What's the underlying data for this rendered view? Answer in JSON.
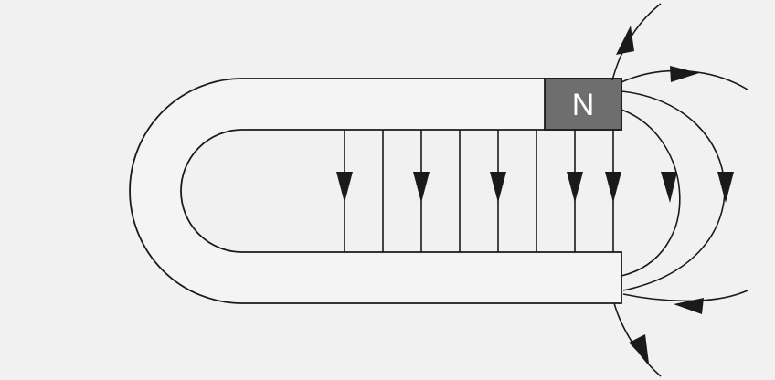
{
  "diagram": {
    "north_pole_label": "N",
    "colors": {
      "background": "#f1f1f1",
      "magnet_body": "#f4f4f4",
      "north_pole": "#6e6e6e",
      "field_lines": "#1a1a1a",
      "pole_label": "#ffffff"
    }
  }
}
